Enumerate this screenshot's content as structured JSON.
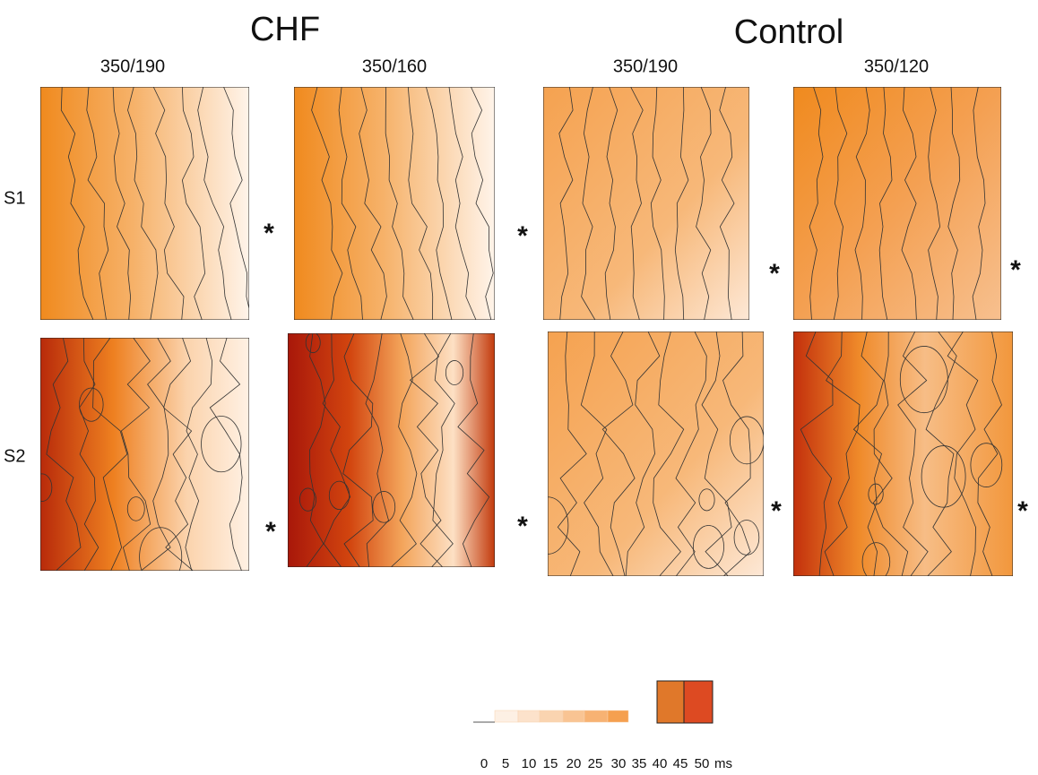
{
  "figure": {
    "groups": [
      {
        "title": "CHF",
        "columns": [
          "350/190",
          "350/160"
        ]
      },
      {
        "title": "Control",
        "columns": [
          "350/190",
          "350/120"
        ]
      }
    ],
    "rows": [
      "S1",
      "S2"
    ],
    "markers": [
      "*",
      "*",
      "*",
      "*",
      "*",
      "*",
      "*",
      "*"
    ],
    "colorbar": {
      "ticks": [
        0,
        5,
        10,
        15,
        20,
        25,
        30,
        35,
        40,
        45,
        50
      ],
      "unit": "ms"
    }
  }
}
